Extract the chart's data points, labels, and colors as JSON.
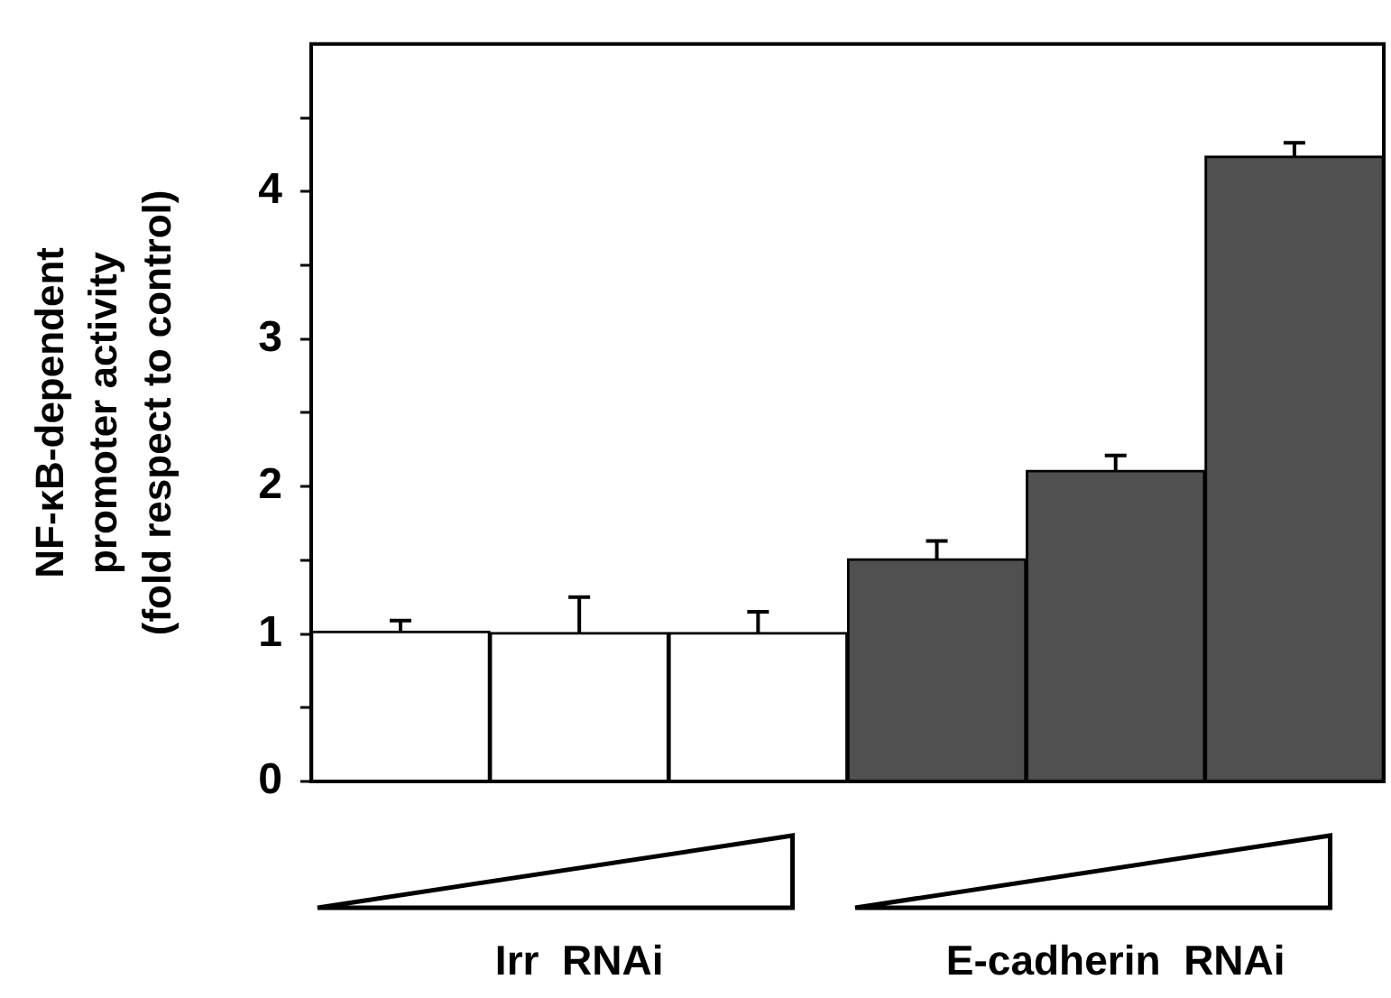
{
  "chart_data": {
    "type": "bar",
    "ylabel": "NF-κB-dependent\npromoter activity\n(fold respect to control)",
    "categories": [
      null,
      null,
      null,
      null,
      null,
      null
    ],
    "values": [
      1.02,
      1.01,
      1.01,
      1.51,
      2.11,
      4.24
    ],
    "colors": [
      "#ffffff",
      "#ffffff",
      "#ffffff",
      "#505050",
      "#505050",
      "#505050"
    ],
    "errors": [
      [
        1.02,
        1.09
      ],
      [
        1.01,
        1.25
      ],
      [
        1.01,
        1.15
      ],
      [
        1.51,
        1.63
      ],
      [
        2.11,
        2.21
      ],
      [
        4.24,
        4.33
      ]
    ],
    "ylim": [
      0,
      5
    ],
    "yticks": [
      0,
      {
        "value": 0.5,
        "label": null
      },
      1,
      {
        "value": 1.5,
        "label": null
      },
      2,
      {
        "value": 2.5,
        "label": null
      },
      3,
      {
        "value": 3.5,
        "label": null
      },
      4,
      {
        "value": 4.5,
        "label": null
      }
    ],
    "annotations": [
      "Irr  RNAi",
      "E-cadherin  RNAi"
    ],
    "grid": false,
    "legend": false,
    "tick_labels": "y"
  }
}
